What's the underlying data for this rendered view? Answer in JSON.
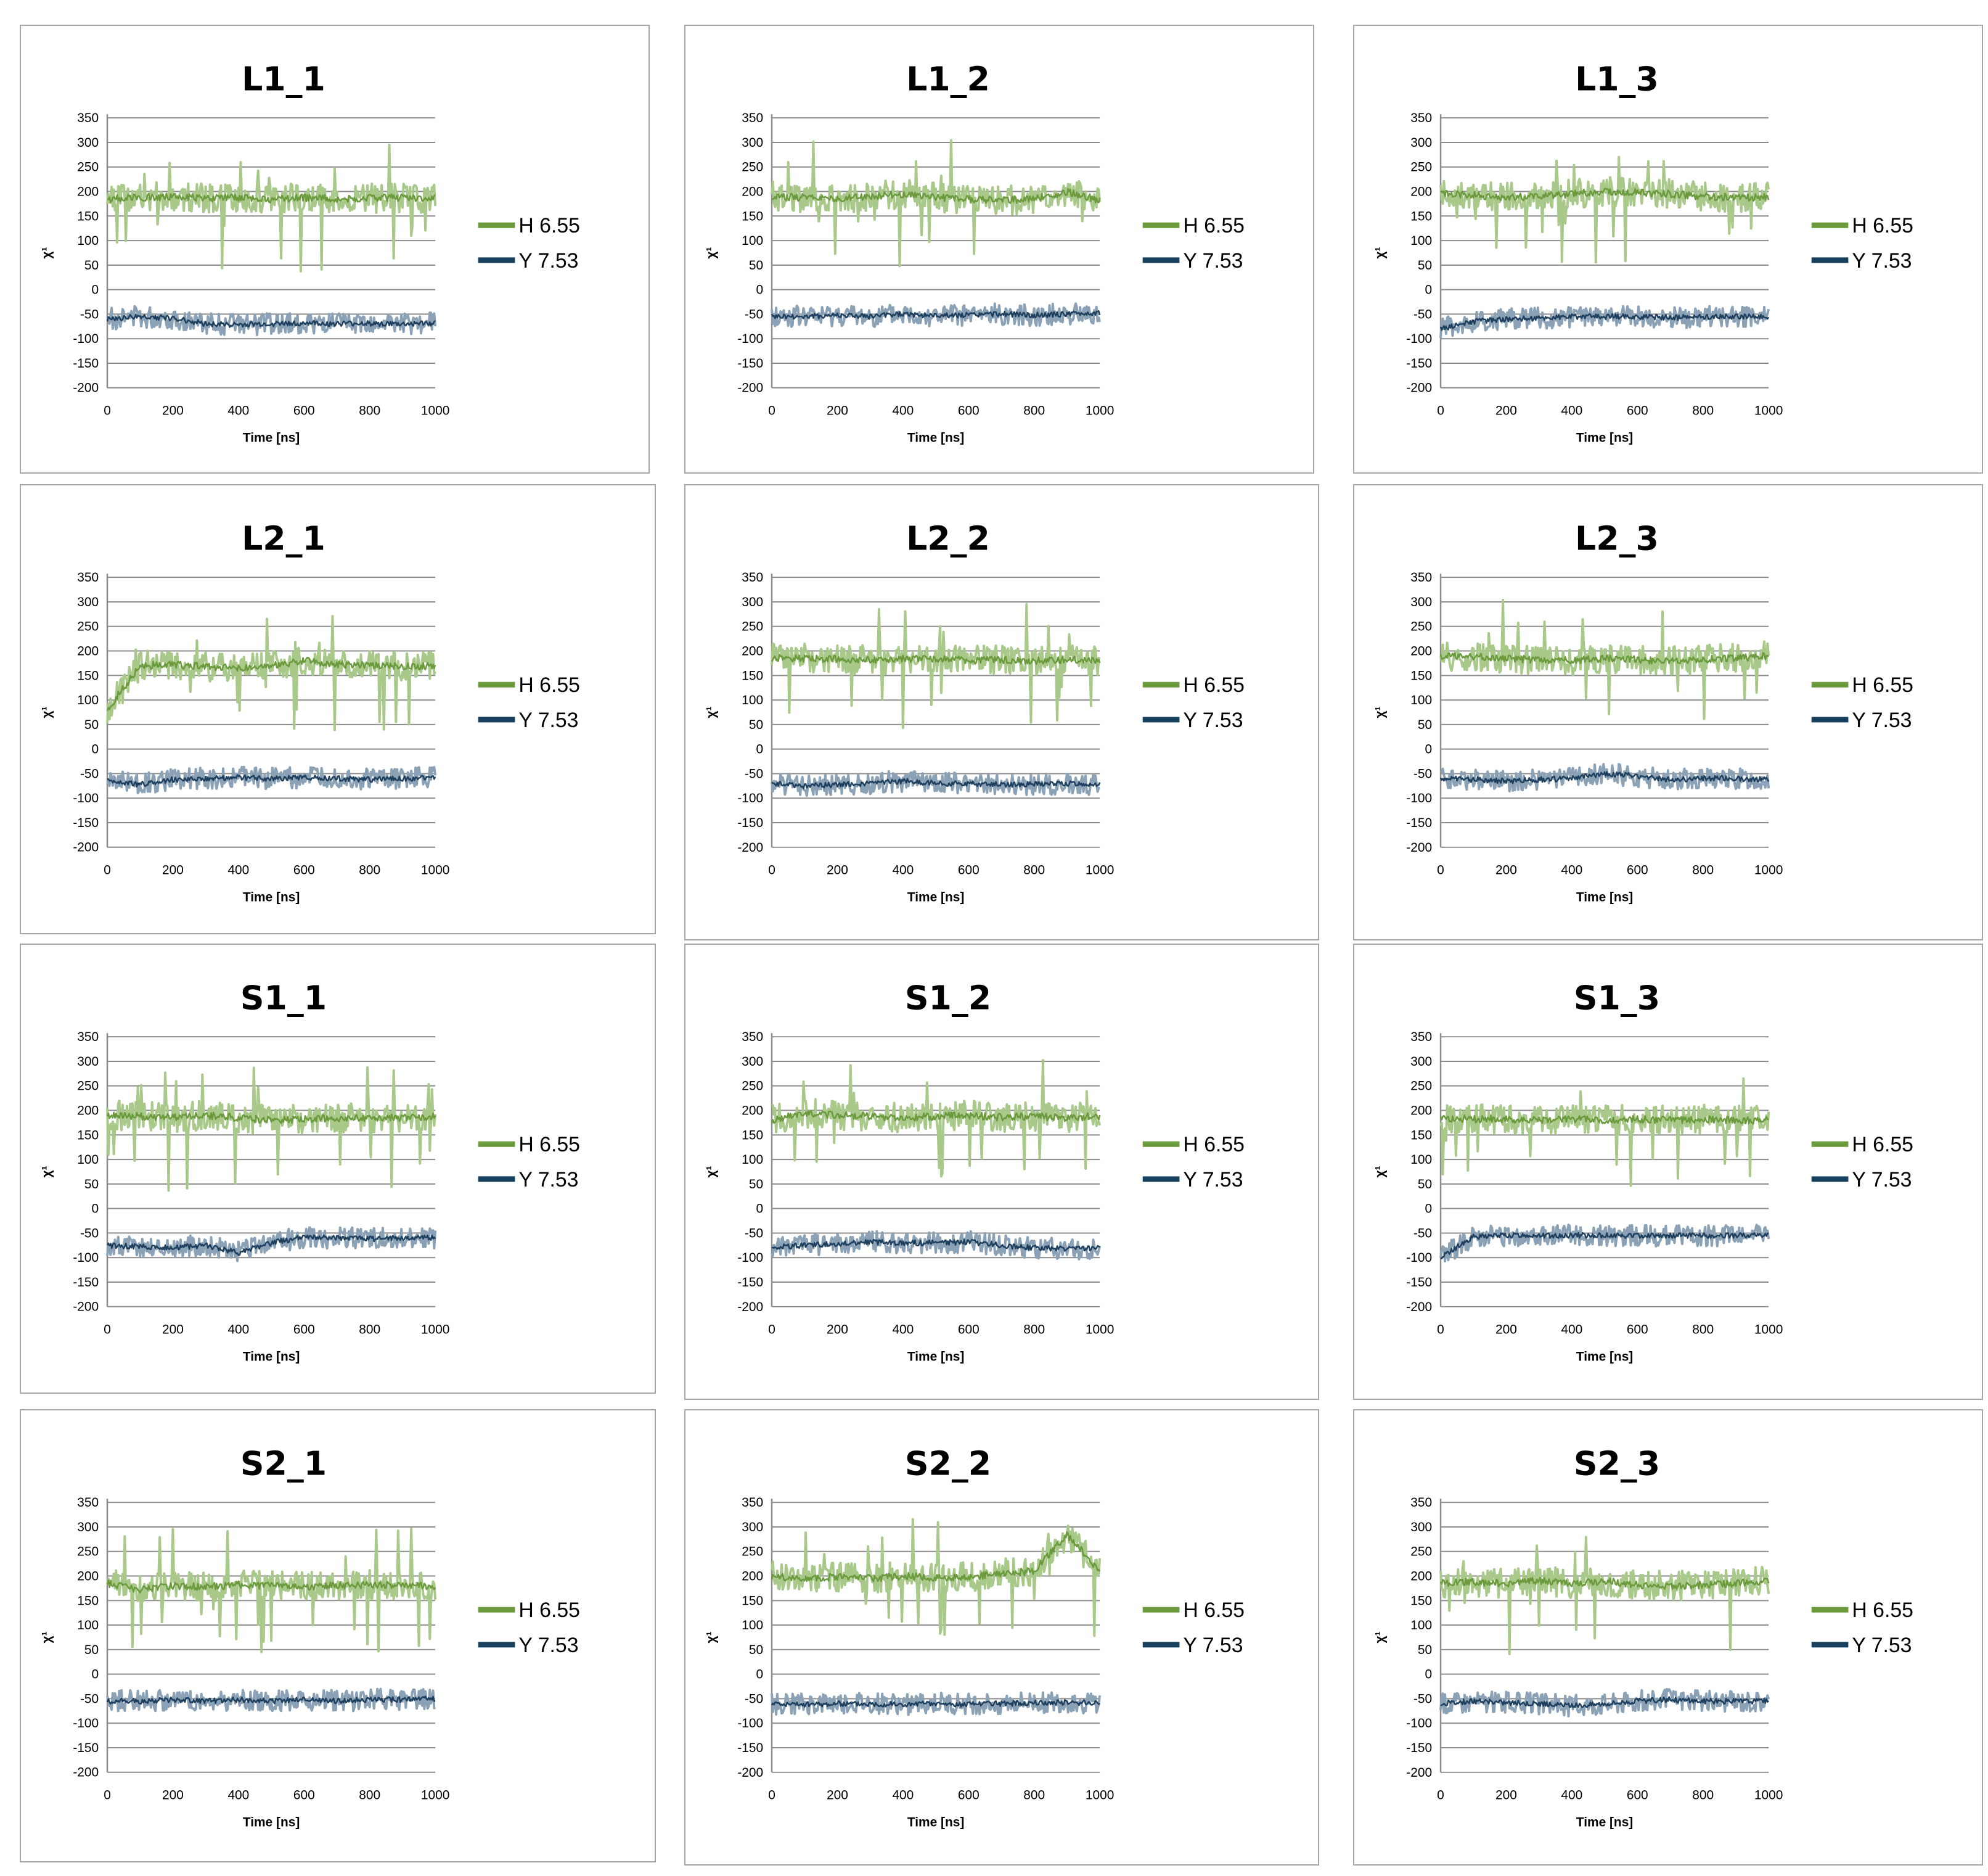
{
  "figure": {
    "common": {
      "xlabel": "Time [ns]",
      "ylabel": "χ¹",
      "ylim": [
        -200,
        350
      ],
      "xlim": [
        0,
        1000
      ],
      "yticks": [
        -200,
        -150,
        -100,
        -50,
        0,
        50,
        100,
        150,
        200,
        250,
        300,
        350
      ],
      "xticks": [
        0,
        200,
        400,
        600,
        800,
        1000
      ],
      "legend": [
        "H 6.55",
        "Y 7.53"
      ],
      "colors": {
        "h_band": "#a9c98a",
        "h_line": "#6a9a3c",
        "y_band": "#8aa1b6",
        "y_line": "#1f3f5e",
        "legend_h": "#6a9a3c",
        "legend_y": "#17405f"
      }
    }
  },
  "chart_data": [
    {
      "type": "line",
      "title": "L1_1",
      "xlabel": "Time [ns]",
      "ylabel": "χ¹",
      "ylim": [
        -200,
        350
      ],
      "legend_position": "right",
      "series": [
        {
          "name": "H 6.55",
          "x": [
            0,
            100,
            200,
            300,
            400,
            500,
            600,
            700,
            800,
            900,
            1000
          ],
          "values": [
            185,
            188,
            190,
            186,
            188,
            184,
            187,
            185,
            186,
            188,
            185
          ]
        },
        {
          "name": "Y 7.53",
          "x": [
            0,
            100,
            200,
            300,
            400,
            500,
            600,
            700,
            800,
            900,
            1000
          ],
          "values": [
            -60,
            -55,
            -58,
            -70,
            -72,
            -70,
            -68,
            -70,
            -69,
            -71,
            -68
          ]
        }
      ]
    },
    {
      "type": "line",
      "title": "L1_2",
      "xlabel": "Time [ns]",
      "ylabel": "χ¹",
      "ylim": [
        -200,
        350
      ],
      "legend_position": "right",
      "series": [
        {
          "name": "H 6.55",
          "x": [
            0,
            100,
            200,
            300,
            400,
            500,
            600,
            700,
            800,
            900,
            1000
          ],
          "values": [
            190,
            188,
            185,
            190,
            195,
            188,
            185,
            182,
            185,
            200,
            182
          ]
        },
        {
          "name": "Y 7.53",
          "x": [
            0,
            100,
            200,
            300,
            400,
            500,
            600,
            700,
            800,
            900,
            1000
          ],
          "values": [
            -55,
            -55,
            -52,
            -55,
            -50,
            -53,
            -52,
            -50,
            -52,
            -50,
            -48
          ]
        }
      ]
    },
    {
      "type": "line",
      "title": "L1_3",
      "xlabel": "Time [ns]",
      "ylabel": "χ¹",
      "ylim": [
        -200,
        350
      ],
      "legend_position": "right",
      "series": [
        {
          "name": "H 6.55",
          "x": [
            0,
            100,
            200,
            300,
            400,
            500,
            600,
            700,
            800,
            900,
            1000
          ],
          "values": [
            195,
            192,
            188,
            190,
            195,
            200,
            198,
            195,
            190,
            188,
            188
          ]
        },
        {
          "name": "Y 7.53",
          "x": [
            0,
            100,
            200,
            300,
            400,
            500,
            600,
            700,
            800,
            900,
            1000
          ],
          "values": [
            -80,
            -65,
            -60,
            -58,
            -55,
            -55,
            -55,
            -57,
            -55,
            -55,
            -55
          ]
        }
      ]
    },
    {
      "type": "line",
      "title": "L2_1",
      "xlabel": "Time [ns]",
      "ylabel": "χ¹",
      "ylim": [
        -200,
        350
      ],
      "legend_position": "right",
      "series": [
        {
          "name": "H 6.55",
          "x": [
            0,
            100,
            200,
            300,
            400,
            500,
            600,
            700,
            800,
            900,
            1000
          ],
          "values": [
            80,
            170,
            172,
            168,
            165,
            170,
            180,
            172,
            170,
            168,
            170
          ]
        },
        {
          "name": "Y 7.53",
          "x": [
            0,
            100,
            200,
            300,
            400,
            500,
            600,
            700,
            800,
            900,
            1000
          ],
          "values": [
            -65,
            -72,
            -62,
            -60,
            -58,
            -60,
            -58,
            -60,
            -62,
            -60,
            -58
          ]
        }
      ]
    },
    {
      "type": "line",
      "title": "L2_2",
      "xlabel": "Time [ns]",
      "ylabel": "χ¹",
      "ylim": [
        -200,
        350
      ],
      "legend_position": "right",
      "series": [
        {
          "name": "H 6.55",
          "x": [
            0,
            100,
            200,
            300,
            400,
            500,
            600,
            700,
            800,
            900,
            1000
          ],
          "values": [
            185,
            185,
            183,
            182,
            184,
            185,
            180,
            182,
            180,
            182,
            180
          ]
        },
        {
          "name": "Y 7.53",
          "x": [
            0,
            100,
            200,
            300,
            400,
            500,
            600,
            700,
            800,
            900,
            1000
          ],
          "values": [
            -70,
            -75,
            -72,
            -70,
            -65,
            -70,
            -70,
            -72,
            -72,
            -70,
            -72
          ]
        }
      ]
    },
    {
      "type": "line",
      "title": "L2_3",
      "xlabel": "Time [ns]",
      "ylabel": "χ¹",
      "ylim": [
        -200,
        350
      ],
      "legend_position": "right",
      "series": [
        {
          "name": "H 6.55",
          "x": [
            0,
            100,
            200,
            300,
            400,
            500,
            600,
            700,
            800,
            900,
            1000
          ],
          "values": [
            190,
            188,
            185,
            182,
            180,
            185,
            182,
            180,
            183,
            185,
            190
          ]
        },
        {
          "name": "Y 7.53",
          "x": [
            0,
            100,
            200,
            300,
            400,
            500,
            600,
            700,
            800,
            900,
            1000
          ],
          "values": [
            -60,
            -62,
            -65,
            -62,
            -60,
            -50,
            -55,
            -62,
            -60,
            -60,
            -62
          ]
        }
      ]
    },
    {
      "type": "line",
      "title": "S1_1",
      "xlabel": "Time [ns]",
      "ylabel": "χ¹",
      "ylim": [
        -200,
        350
      ],
      "legend_position": "right",
      "series": [
        {
          "name": "H 6.55",
          "x": [
            0,
            100,
            200,
            300,
            400,
            500,
            600,
            700,
            800,
            900,
            1000
          ],
          "values": [
            190,
            188,
            185,
            190,
            185,
            180,
            182,
            184,
            185,
            185,
            188
          ]
        },
        {
          "name": "Y 7.53",
          "x": [
            0,
            100,
            200,
            300,
            400,
            500,
            600,
            700,
            800,
            900,
            1000
          ],
          "values": [
            -75,
            -78,
            -80,
            -75,
            -90,
            -70,
            -58,
            -60,
            -62,
            -60,
            -60
          ]
        }
      ]
    },
    {
      "type": "line",
      "title": "S1_2",
      "xlabel": "Time [ns]",
      "ylabel": "χ¹",
      "ylim": [
        -200,
        350
      ],
      "legend_position": "right",
      "series": [
        {
          "name": "H 6.55",
          "x": [
            0,
            100,
            200,
            300,
            400,
            500,
            600,
            700,
            800,
            900,
            1000
          ],
          "values": [
            180,
            195,
            190,
            188,
            185,
            188,
            190,
            186,
            188,
            185,
            188
          ]
        },
        {
          "name": "Y 7.53",
          "x": [
            0,
            100,
            200,
            300,
            400,
            500,
            600,
            700,
            800,
            900,
            1000
          ],
          "values": [
            -80,
            -75,
            -72,
            -68,
            -70,
            -70,
            -68,
            -75,
            -80,
            -82,
            -80
          ]
        }
      ]
    },
    {
      "type": "line",
      "title": "S1_3",
      "xlabel": "Time [ns]",
      "ylabel": "χ¹",
      "ylim": [
        -200,
        350
      ],
      "legend_position": "right",
      "series": [
        {
          "name": "H 6.55",
          "x": [
            0,
            100,
            200,
            300,
            400,
            500,
            600,
            700,
            800,
            900,
            1000
          ],
          "values": [
            185,
            182,
            182,
            180,
            182,
            180,
            182,
            180,
            182,
            180,
            180
          ]
        },
        {
          "name": "Y 7.53",
          "x": [
            0,
            100,
            200,
            300,
            400,
            500,
            600,
            700,
            800,
            900,
            1000
          ],
          "values": [
            -100,
            -58,
            -55,
            -55,
            -55,
            -55,
            -55,
            -55,
            -55,
            -55,
            -55
          ]
        }
      ]
    },
    {
      "type": "line",
      "title": "S2_1",
      "xlabel": "Time [ns]",
      "ylabel": "χ¹",
      "ylim": [
        -200,
        350
      ],
      "legend_position": "right",
      "series": [
        {
          "name": "H 6.55",
          "x": [
            0,
            100,
            200,
            300,
            400,
            500,
            600,
            700,
            800,
            900,
            1000
          ],
          "values": [
            185,
            172,
            180,
            178,
            182,
            180,
            178,
            180,
            182,
            180,
            180
          ]
        },
        {
          "name": "Y 7.53",
          "x": [
            0,
            100,
            200,
            300,
            400,
            500,
            600,
            700,
            800,
            900,
            1000
          ],
          "values": [
            -55,
            -55,
            -52,
            -55,
            -52,
            -55,
            -52,
            -55,
            -52,
            -52,
            -50
          ]
        }
      ]
    },
    {
      "type": "line",
      "title": "S2_2",
      "xlabel": "Time [ns]",
      "ylabel": "χ¹",
      "ylim": [
        -200,
        350
      ],
      "legend_position": "right",
      "series": [
        {
          "name": "H 6.55",
          "x": [
            0,
            100,
            200,
            300,
            400,
            500,
            600,
            700,
            800,
            900,
            1000
          ],
          "values": [
            200,
            195,
            198,
            195,
            200,
            196,
            198,
            205,
            210,
            285,
            210
          ]
        },
        {
          "name": "Y 7.53",
          "x": [
            0,
            100,
            200,
            300,
            400,
            500,
            600,
            700,
            800,
            900,
            1000
          ],
          "values": [
            -60,
            -62,
            -60,
            -60,
            -62,
            -60,
            -62,
            -60,
            -58,
            -58,
            -58
          ]
        }
      ]
    },
    {
      "type": "line",
      "title": "S2_3",
      "xlabel": "Time [ns]",
      "ylabel": "χ¹",
      "ylim": [
        -200,
        350
      ],
      "legend_position": "right",
      "series": [
        {
          "name": "H 6.55",
          "x": [
            0,
            100,
            200,
            300,
            400,
            500,
            600,
            700,
            800,
            900,
            1000
          ],
          "values": [
            185,
            188,
            185,
            190,
            185,
            190,
            182,
            180,
            182,
            185,
            190
          ]
        },
        {
          "name": "Y 7.53",
          "x": [
            0,
            100,
            200,
            300,
            400,
            500,
            600,
            700,
            800,
            900,
            1000
          ],
          "values": [
            -60,
            -55,
            -58,
            -60,
            -65,
            -60,
            -55,
            -52,
            -55,
            -55,
            -55
          ]
        }
      ]
    }
  ]
}
